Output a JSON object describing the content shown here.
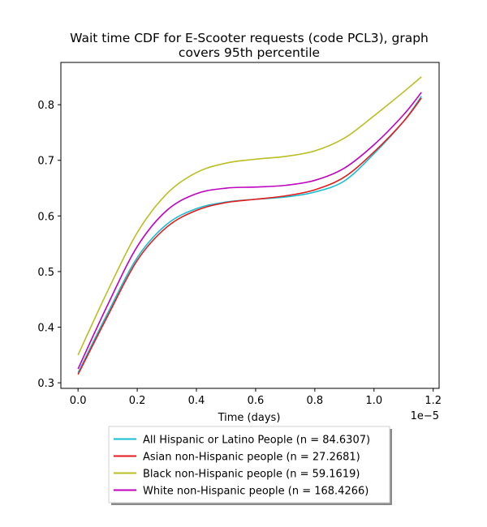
{
  "chart_data": {
    "type": "line",
    "title_lines": [
      "Wait time CDF for E-Scooter  requests (code PCL3), graph",
      "covers 95th percentile"
    ],
    "xlabel": "Time (days)",
    "ylabel": "",
    "x_offset_label": "1e−5",
    "xlim": [
      -0.058,
      1.22
    ],
    "ylim": [
      0.29,
      0.876
    ],
    "x_ticks": [
      0.0,
      0.2,
      0.4,
      0.6,
      0.8,
      1.0,
      1.2
    ],
    "x_tick_labels": [
      "0.0",
      "0.2",
      "0.4",
      "0.6",
      "0.8",
      "1.0",
      "1.2"
    ],
    "y_ticks": [
      0.3,
      0.4,
      0.5,
      0.6,
      0.7,
      0.8
    ],
    "y_tick_labels": [
      "0.3",
      "0.4",
      "0.5",
      "0.6",
      "0.7",
      "0.8"
    ],
    "grid": false,
    "legend_position": "below",
    "series": [
      {
        "name": "All Hispanic or Latino People (n = 84.6307)",
        "color": "#17becf",
        "x": [
          0.0,
          0.1,
          0.2,
          0.3,
          0.4,
          0.5,
          0.6,
          0.7,
          0.8,
          0.9,
          1.0,
          1.1,
          1.16
        ],
        "values": [
          0.318,
          0.425,
          0.525,
          0.585,
          0.613,
          0.625,
          0.63,
          0.634,
          0.643,
          0.663,
          0.712,
          0.77,
          0.815
        ]
      },
      {
        "name": "Asian non-Hispanic people (n = 27.2681)",
        "color": "#e41a1c",
        "x": [
          0.0,
          0.1,
          0.2,
          0.3,
          0.4,
          0.5,
          0.6,
          0.7,
          0.8,
          0.9,
          1.0,
          1.1,
          1.16
        ],
        "values": [
          0.315,
          0.42,
          0.52,
          0.58,
          0.61,
          0.624,
          0.63,
          0.636,
          0.647,
          0.67,
          0.715,
          0.77,
          0.812
        ]
      },
      {
        "name": "Black non-Hispanic people (n = 59.1619)",
        "color": "#bcbd22",
        "x": [
          0.0,
          0.1,
          0.2,
          0.3,
          0.4,
          0.5,
          0.6,
          0.7,
          0.8,
          0.9,
          1.0,
          1.1,
          1.16
        ],
        "values": [
          0.35,
          0.465,
          0.57,
          0.64,
          0.678,
          0.695,
          0.702,
          0.707,
          0.717,
          0.74,
          0.78,
          0.823,
          0.85
        ]
      },
      {
        "name": "White non-Hispanic people (n = 168.4266)",
        "color": "#bf00bf",
        "x": [
          0.0,
          0.1,
          0.2,
          0.3,
          0.4,
          0.5,
          0.6,
          0.7,
          0.8,
          0.9,
          1.0,
          1.1,
          1.16
        ],
        "values": [
          0.325,
          0.44,
          0.545,
          0.61,
          0.64,
          0.65,
          0.652,
          0.655,
          0.664,
          0.686,
          0.728,
          0.782,
          0.822
        ]
      }
    ]
  }
}
